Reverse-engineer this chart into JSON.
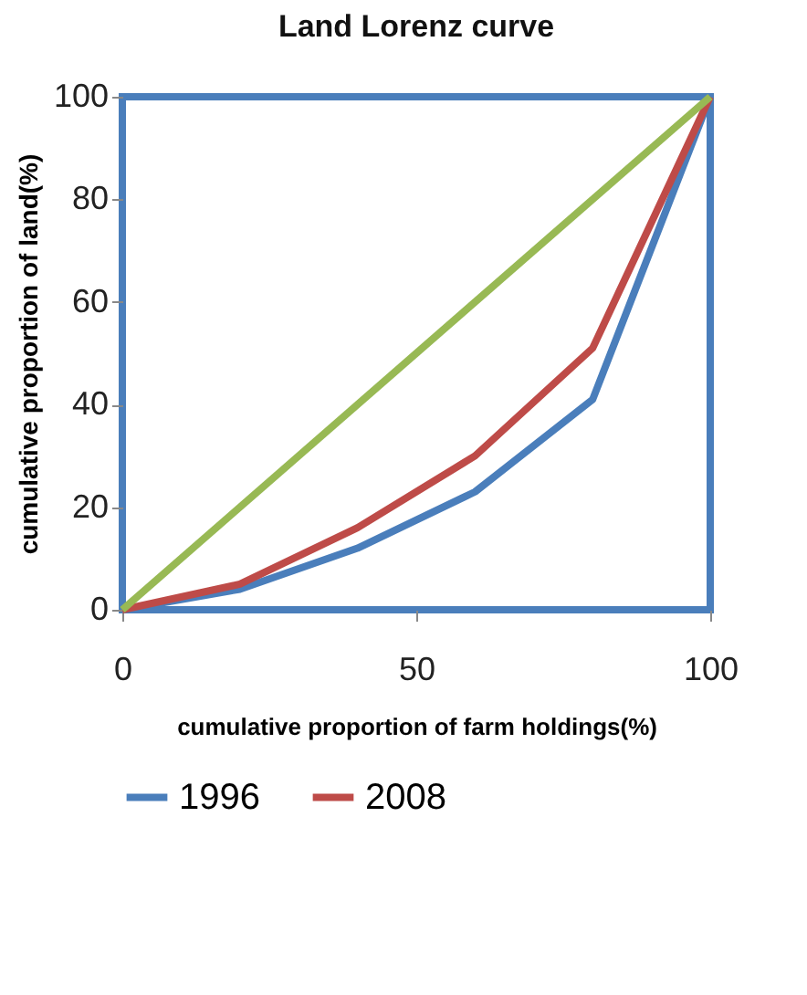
{
  "chart_data": {
    "type": "line",
    "title": "Land Lorenz curve",
    "xlabel": "cumulative proportion of farm holdings(%)",
    "ylabel": "cumulative proportion  of land(%)",
    "series": [
      {
        "name": "1996",
        "color": "#4a7ebb",
        "x": [
          0,
          20,
          40,
          60,
          80,
          100
        ],
        "values": [
          0,
          4,
          12,
          23,
          41,
          100
        ]
      },
      {
        "name": "2008",
        "color": "#be4b48",
        "x": [
          0,
          20,
          40,
          60,
          80,
          100
        ],
        "values": [
          0,
          5,
          16,
          30,
          51,
          100
        ]
      },
      {
        "color": "#98b954",
        "x": [
          0,
          100
        ],
        "values": [
          0,
          100
        ]
      }
    ],
    "xlim": [
      0,
      100
    ],
    "xticks": [
      0,
      50,
      100
    ],
    "ylim": [
      0,
      100
    ],
    "yticks": [
      0,
      20,
      40,
      60,
      80,
      100
    ],
    "legend": "bottom",
    "grid": false
  }
}
